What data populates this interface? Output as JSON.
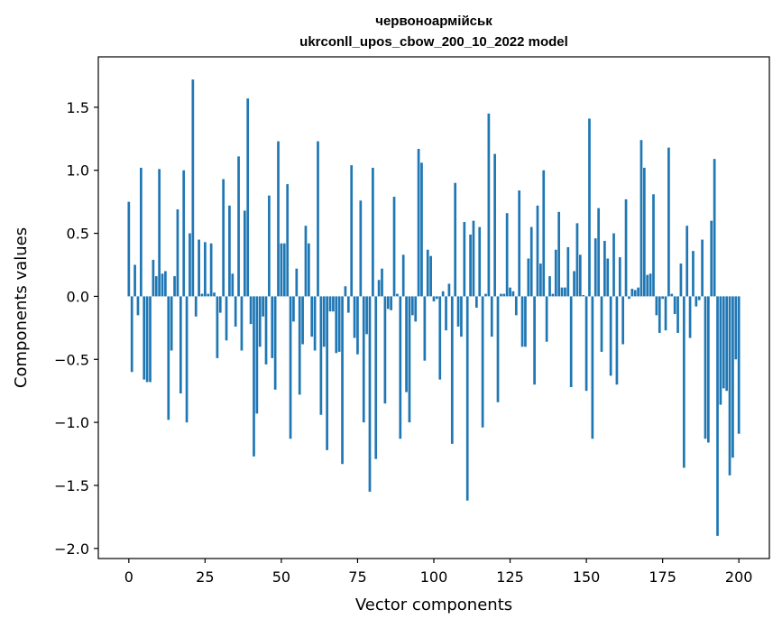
{
  "chart_data": {
    "type": "bar",
    "title_line1": "червоноармійськ",
    "title_line2": "ukrconll_upos_cbow_200_10_2022 model",
    "xlabel": "Vector components",
    "ylabel": "Components values",
    "xlim": [
      -10,
      210
    ],
    "ylim": [
      -2.08,
      1.9
    ],
    "xticks": [
      0,
      25,
      50,
      75,
      100,
      125,
      150,
      175,
      200
    ],
    "yticks": [
      -2.0,
      -1.5,
      -1.0,
      -0.5,
      0.0,
      0.5,
      1.0,
      1.5
    ],
    "ytick_labels": [
      "−2.0",
      "−1.5",
      "−1.0",
      "−0.5",
      "0.0",
      "0.5",
      "1.0",
      "1.5"
    ],
    "grid": false,
    "bar_color": "#1f77b4",
    "values": [
      0.75,
      -0.6,
      0.25,
      -0.15,
      1.02,
      -0.66,
      -0.68,
      -0.68,
      0.29,
      0.16,
      1.01,
      0.18,
      0.2,
      -0.98,
      -0.43,
      0.16,
      0.69,
      -0.77,
      1.0,
      -1.0,
      0.5,
      1.72,
      -0.16,
      0.45,
      0.02,
      0.43,
      0.02,
      0.42,
      0.03,
      -0.49,
      -0.13,
      0.93,
      -0.35,
      0.72,
      0.18,
      -0.24,
      1.11,
      -0.43,
      0.68,
      1.57,
      -0.22,
      -1.27,
      -0.93,
      -0.4,
      -0.16,
      -0.54,
      0.8,
      -0.49,
      -0.74,
      1.23,
      0.42,
      0.42,
      0.89,
      -1.13,
      -0.2,
      0.22,
      -0.78,
      -0.38,
      0.56,
      0.42,
      -0.32,
      -0.43,
      1.23,
      -0.94,
      -0.4,
      -1.22,
      -0.12,
      -0.12,
      -0.45,
      -0.44,
      -1.33,
      0.08,
      -0.13,
      1.04,
      -0.33,
      -0.46,
      0.76,
      -1.0,
      -0.3,
      -1.55,
      1.02,
      -1.29,
      0.13,
      0.22,
      -0.85,
      -0.1,
      -0.11,
      0.79,
      0.02,
      -1.13,
      0.33,
      -0.76,
      -1.0,
      -0.15,
      -0.2,
      1.17,
      1.06,
      -0.51,
      0.37,
      0.32,
      -0.04,
      -0.02,
      -0.66,
      0.04,
      -0.27,
      0.1,
      -1.17,
      0.9,
      -0.24,
      -0.32,
      0.59,
      -1.62,
      0.49,
      0.6,
      -0.09,
      0.55,
      -1.04,
      0.02,
      1.45,
      -0.32,
      1.13,
      -0.84,
      0.02,
      0.02,
      0.66,
      0.07,
      0.04,
      -0.15,
      0.84,
      -0.4,
      -0.4,
      0.3,
      0.55,
      -0.7,
      0.72,
      0.26,
      1.0,
      -0.36,
      0.16,
      0.02,
      0.37,
      0.67,
      0.07,
      0.07,
      0.39,
      -0.72,
      0.2,
      0.58,
      0.33,
      0.01,
      -0.75,
      1.41,
      -1.13,
      0.46,
      0.7,
      -0.44,
      0.44,
      0.3,
      -0.63,
      0.5,
      -0.7,
      0.31,
      -0.38,
      0.77,
      -0.02,
      0.06,
      0.05,
      0.07,
      1.24,
      1.02,
      0.17,
      0.18,
      0.81,
      -0.15,
      -0.29,
      -0.02,
      -0.27,
      1.18,
      0.02,
      -0.14,
      -0.29,
      0.26,
      -1.36,
      0.56,
      -0.33,
      0.36,
      -0.08,
      -0.03,
      0.45,
      -1.13,
      -1.16,
      0.6,
      1.09,
      -1.9,
      -0.86,
      -0.73,
      -0.75,
      -1.42,
      -1.28,
      -0.5,
      -1.09
    ]
  }
}
